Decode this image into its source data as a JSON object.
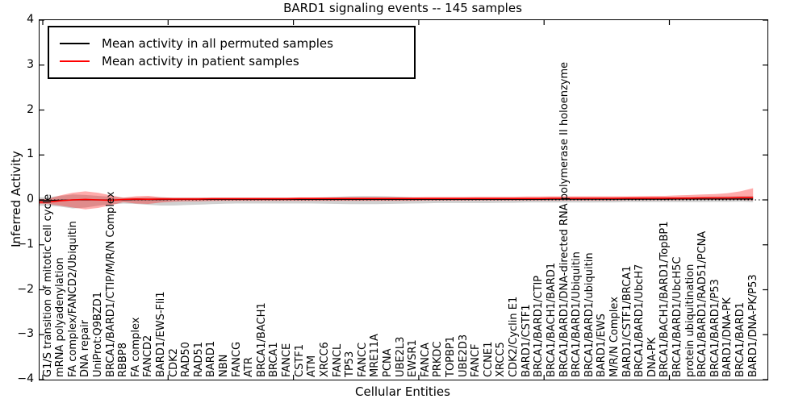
{
  "figure": {
    "title": "BARD1 signaling events -- 145 samples",
    "xlabel": "Cellular Entities",
    "ylabel": "Inferred Activity"
  },
  "y_axis": {
    "ticks": [
      "4",
      "3",
      "2",
      "1",
      "0",
      "−1",
      "−2",
      "−3",
      "−4"
    ]
  },
  "legend": {
    "items": [
      {
        "label": "Mean activity in all permuted samples",
        "color": "#000000"
      },
      {
        "label": "Mean activity in patient samples",
        "color": "#ff0000"
      }
    ]
  },
  "chart_data": {
    "type": "line",
    "title": "BARD1 signaling events -- 145 samples",
    "xlabel": "Cellular Entities",
    "ylabel": "Inferred Activity",
    "ylim": [
      -4,
      4
    ],
    "grid": false,
    "zero_line_style": "dotted",
    "legend_position": "upper left",
    "categories": [
      "G1/S transition of mitotic cell cycle",
      "mRNA polyadenylation",
      "FA complex/FANCD2/Ubiquitin",
      "DNA repair",
      "UniProt:Q9BZD1",
      "BRCA1/BARD1/CTIP/M/R/N Complex",
      "RBBP8",
      "FA complex",
      "FANCD2",
      "BARD1/EWS-Fli1",
      "CDK2",
      "RAD50",
      "RAD51",
      "BARD1",
      "NBN",
      "FANCG",
      "ATR",
      "BRCA1/BACH1",
      "BRCA1",
      "FANCE",
      "CSTF1",
      "ATM",
      "XRCC6",
      "FANCL",
      "TP53",
      "FANCC",
      "MRE11A",
      "PCNA",
      "UBE2L3",
      "EWSR1",
      "FANCA",
      "PRKDC",
      "TOPBP1",
      "UBE2D3",
      "FANCF",
      "CCNE1",
      "XRCC5",
      "CDK2/Cyclin E1",
      "BARD1/CSTF1",
      "BRCA1/BARD1/CTIP",
      "BRCA1/BACH1/BARD1",
      "BRCA1/BARD1/DNA-directed RNA polymerase II holoenzyme",
      "BRCA1/BARD1/Ubiquitin",
      "BRCA1/BARD1/ubiquitin",
      "BARD1/EWS",
      "M/R/N Complex",
      "BARD1/CSTF1/BRCA1",
      "BRCA1/BARD1/UbcH7",
      "DNA-PK",
      "BRCA1/BACH1/BARD1/TopBP1",
      "BRCA1/BARD1/UbcH5C",
      "protein ubiquitination",
      "BRCA1/BARD1/RAD51/PCNA",
      "BRCA1/BARD1/P53",
      "BARD1/DNA-PK",
      "BRCA1/BARD1",
      "BARD1/DNA-PK/P53"
    ],
    "series": [
      {
        "name": "Mean activity in all permuted samples",
        "color": "#000000",
        "values": [
          -0.01,
          -0.005,
          0,
          0,
          0,
          0,
          0,
          0.005,
          0.005,
          0.005,
          0.01,
          0.01,
          0.01,
          0.01,
          0.01,
          0.01,
          0.01,
          0.01,
          0.01,
          0.01,
          0.01,
          0.01,
          0.01,
          0.01,
          0.01,
          0.01,
          0.01,
          0.01,
          0.01,
          0.01,
          0.01,
          0.01,
          0.01,
          0.01,
          0.01,
          0.01,
          0.01,
          0.01,
          0.01,
          0.01,
          0.015,
          0.015,
          0.015,
          0.015,
          0.015,
          0.015,
          0.015,
          0.015,
          0.015,
          0.015,
          0.02,
          0.02,
          0.02,
          0.02,
          0.02,
          0.02,
          0.02
        ]
      },
      {
        "name": "Mean activity in patient samples",
        "color": "#ff0000",
        "values": [
          -0.05,
          -0.02,
          0,
          0.01,
          0,
          -0.01,
          0.01,
          0.02,
          0.015,
          0.02,
          0.02,
          0.02,
          0.02,
          0.025,
          0.025,
          0.025,
          0.025,
          0.025,
          0.025,
          0.025,
          0.03,
          0.03,
          0.03,
          0.03,
          0.03,
          0.03,
          0.03,
          0.03,
          0.03,
          0.03,
          0.03,
          0.03,
          0.03,
          0.03,
          0.03,
          0.03,
          0.03,
          0.03,
          0.03,
          0.03,
          0.035,
          0.035,
          0.035,
          0.035,
          0.035,
          0.035,
          0.04,
          0.04,
          0.04,
          0.04,
          0.04,
          0.04,
          0.045,
          0.045,
          0.045,
          0.05,
          0.05
        ]
      }
    ],
    "bands": [
      {
        "name": "permuted samples spread",
        "color": "rgba(120,120,120,0.35)",
        "upper": [
          0.06,
          0.09,
          0.12,
          0.11,
          0.09,
          0.07,
          0.05,
          0.05,
          0.06,
          0.06,
          0.05,
          0.05,
          0.05,
          0.05,
          0.05,
          0.05,
          0.05,
          0.05,
          0.05,
          0.05,
          0.05,
          0.05,
          0.06,
          0.07,
          0.08,
          0.085,
          0.085,
          0.08,
          0.07,
          0.06,
          0.05,
          0.05,
          0.05,
          0.05,
          0.05,
          0.05,
          0.05,
          0.05,
          0.05,
          0.05,
          0.05,
          0.05,
          0.05,
          0.05,
          0.05,
          0.05,
          0.05,
          0.05,
          0.055,
          0.06,
          0.06,
          0.065,
          0.07,
          0.075,
          0.08,
          0.085,
          0.09
        ],
        "lower": [
          -0.13,
          -0.15,
          -0.19,
          -0.17,
          -0.13,
          -0.1,
          -0.08,
          -0.09,
          -0.11,
          -0.125,
          -0.125,
          -0.115,
          -0.105,
          -0.095,
          -0.085,
          -0.08,
          -0.08,
          -0.08,
          -0.08,
          -0.08,
          -0.08,
          -0.08,
          -0.085,
          -0.09,
          -0.095,
          -0.095,
          -0.095,
          -0.09,
          -0.085,
          -0.08,
          -0.075,
          -0.07,
          -0.07,
          -0.07,
          -0.07,
          -0.07,
          -0.065,
          -0.065,
          -0.06,
          -0.06,
          -0.06,
          -0.06,
          -0.06,
          -0.06,
          -0.055,
          -0.055,
          -0.05,
          -0.05,
          -0.05,
          -0.05,
          -0.05,
          -0.05,
          -0.05,
          -0.045,
          -0.045,
          -0.04,
          -0.05
        ]
      },
      {
        "name": "patient samples spread",
        "color": "rgba(255,0,0,0.33)",
        "upper": [
          0.02,
          0.1,
          0.16,
          0.19,
          0.16,
          0.1,
          0.05,
          0.08,
          0.09,
          0.06,
          0.05,
          0.05,
          0.05,
          0.05,
          0.05,
          0.05,
          0.05,
          0.05,
          0.05,
          0.05,
          0.055,
          0.055,
          0.055,
          0.055,
          0.06,
          0.06,
          0.06,
          0.06,
          0.06,
          0.06,
          0.065,
          0.065,
          0.065,
          0.065,
          0.07,
          0.07,
          0.07,
          0.07,
          0.075,
          0.075,
          0.08,
          0.08,
          0.08,
          0.08,
          0.08,
          0.08,
          0.08,
          0.085,
          0.09,
          0.09,
          0.1,
          0.11,
          0.12,
          0.13,
          0.15,
          0.19,
          0.26
        ],
        "lower": [
          -0.09,
          -0.13,
          -0.17,
          -0.21,
          -0.18,
          -0.12,
          -0.05,
          -0.08,
          -0.09,
          -0.06,
          -0.04,
          -0.03,
          -0.03,
          -0.025,
          -0.02,
          -0.02,
          -0.02,
          -0.02,
          -0.02,
          -0.02,
          -0.02,
          -0.02,
          -0.02,
          -0.02,
          -0.02,
          -0.02,
          -0.02,
          -0.02,
          -0.02,
          -0.02,
          -0.015,
          -0.015,
          -0.015,
          -0.015,
          -0.01,
          -0.01,
          -0.01,
          -0.01,
          -0.01,
          -0.01,
          -0.01,
          -0.01,
          -0.01,
          -0.01,
          -0.01,
          -0.01,
          -0.005,
          -0.005,
          -0.005,
          -0.005,
          -0.005,
          0,
          0,
          0,
          0,
          0,
          -0.01
        ]
      }
    ]
  }
}
